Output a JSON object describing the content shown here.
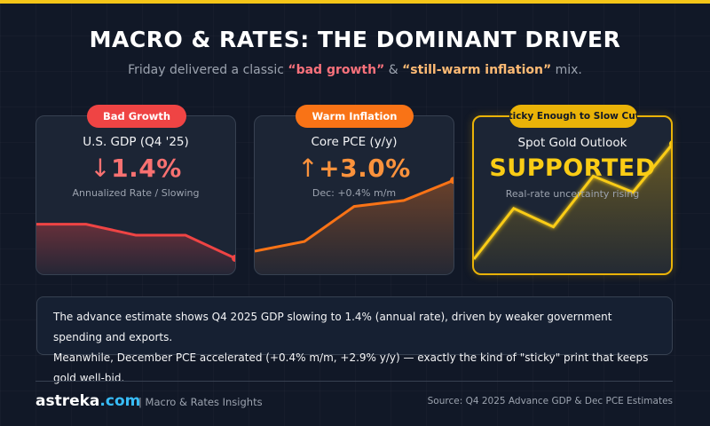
{
  "header": {
    "title": "MACRO & RATES: THE DOMINANT DRIVER",
    "subtitle_pre": "Friday delivered a classic ",
    "subtitle_hl1": "“bad growth”",
    "subtitle_mid": " & ",
    "subtitle_hl2": "“still-warm inflation”",
    "subtitle_post": " mix."
  },
  "cards": [
    {
      "badge": "Bad Growth",
      "title": "U.S. GDP (Q4 '25)",
      "arrow": "↓",
      "value": "1.4%",
      "sub": "Annualized Rate / Slowing",
      "badge_color": "#ef4444",
      "line_color": "#ef4444",
      "value_color": "#f87171",
      "trend": [
        0.62,
        0.62,
        0.42,
        0.42,
        0.0
      ]
    },
    {
      "badge": "Warm Inflation",
      "title": "Core PCE (y/y)",
      "arrow": "↑",
      "value": "+3.0%",
      "sub": "Dec: +0.4% m/m",
      "badge_color": "#f97316",
      "line_color": "#f97316",
      "value_color": "#fb923c",
      "trend": [
        0.0,
        0.13,
        0.6,
        0.68,
        0.95
      ]
    },
    {
      "badge": "Sticky Enough to Slow Cuts",
      "title": "Spot Gold Outlook",
      "value": "SUPPORTED",
      "sub": "Real-rate uncertainty rising",
      "badge_color": "#eab308",
      "line_color": "#facc15",
      "value_color": "#facc15",
      "trend": [
        0.0,
        0.44,
        0.28,
        0.72,
        0.58,
        1.0
      ]
    }
  ],
  "note": {
    "line1": "The advance estimate shows Q4 2025 GDP slowing to 1.4% (annual rate), driven by weaker government spending and exports.",
    "line2": "Meanwhile, December PCE accelerated (+0.4% m/m, +2.9% y/y) — exactly the kind of \"sticky\" print that keeps gold well-bid."
  },
  "footer": {
    "brand_name": "astreka",
    "brand_tld": ".com",
    "tagline": "| Macro & Rates Insights",
    "source": "Source: Q4 2025 Advance GDP & Dec PCE Estimates"
  }
}
